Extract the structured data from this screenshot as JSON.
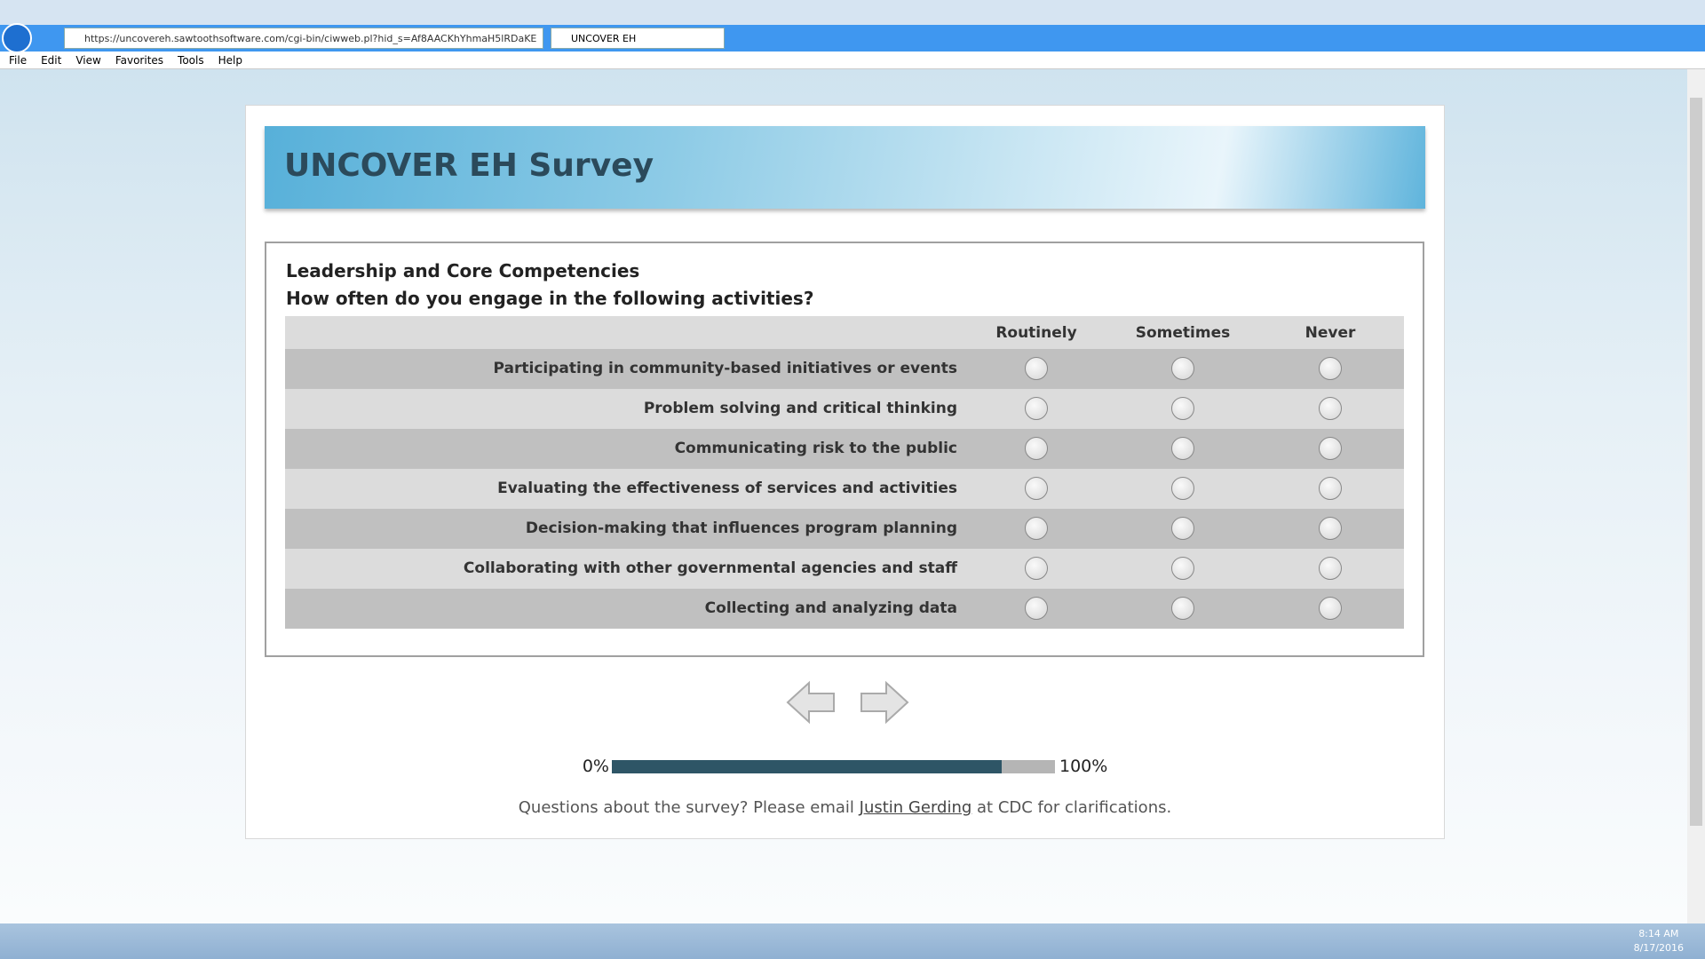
{
  "browser": {
    "url": "https://uncovereh.sawtoothsoftware.com/cgi-bin/ciwweb.pl?hid_s=Af8AACKhYhmaH5lRDaKE",
    "tab_title": "UNCOVER EH",
    "menu": [
      "File",
      "Edit",
      "View",
      "Favorites",
      "Tools",
      "Help"
    ]
  },
  "survey": {
    "title": "UNCOVER EH Survey",
    "section": "Leadership and Core Competencies",
    "question": "How often do you engage in the following activities?",
    "columns": [
      "Routinely",
      "Sometimes",
      "Never"
    ],
    "rows": [
      "Participating in community-based initiatives or events",
      "Problem solving and critical thinking",
      "Communicating risk to the public",
      "Evaluating the effectiveness of services and activities",
      "Decision-making that influences program planning",
      "Collaborating with other governmental agencies and staff",
      "Collecting and analyzing data"
    ],
    "progress": {
      "start": {
        "value": 0,
        "label": "0%"
      },
      "end": {
        "value": 100,
        "label": "100%"
      },
      "value": 88
    },
    "footer": {
      "before": "Questions about the survey? Please email",
      "link": "Justin Gerding",
      "after": "at CDC for clarifications."
    }
  },
  "taskbar": {
    "time": "8:14 AM",
    "date": "8/17/2016"
  }
}
